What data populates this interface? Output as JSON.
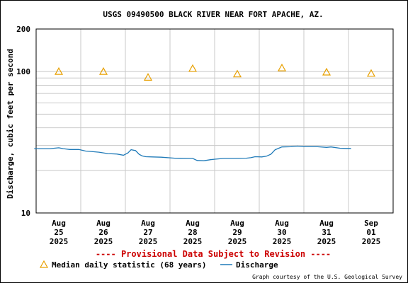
{
  "chart_data": {
    "type": "line",
    "title": "USGS 09490500 BLACK RIVER NEAR FORT APACHE, AZ.",
    "ylabel": "Discharge, cubic feet per second",
    "xlabel": "",
    "y_scale": "log",
    "ylim": [
      10,
      200
    ],
    "y_tick_labels": [
      "200",
      "100",
      "10"
    ],
    "x_tick_labels": [
      [
        "Aug",
        "25",
        "2025"
      ],
      [
        "Aug",
        "26",
        "2025"
      ],
      [
        "Aug",
        "27",
        "2025"
      ],
      [
        "Aug",
        "28",
        "2025"
      ],
      [
        "Aug",
        "29",
        "2025"
      ],
      [
        "Aug",
        "30",
        "2025"
      ],
      [
        "Aug",
        "31",
        "2025"
      ],
      [
        "Sep",
        "01",
        "2025"
      ]
    ],
    "grid": true,
    "series": [
      {
        "name": "Median daily statistic (68 years)",
        "marker": "triangle",
        "color": "#e8a000",
        "x": [
          "2025-08-25",
          "2025-08-26",
          "2025-08-27",
          "2025-08-28",
          "2025-08-29",
          "2025-08-30",
          "2025-08-31",
          "2025-09-01"
        ],
        "values": [
          100,
          100,
          91,
          105,
          96,
          106,
          99,
          97
        ]
      },
      {
        "name": "Discharge",
        "marker": "none",
        "color": "#1f7ab8",
        "x_days_from_aug25": [
          -0.55,
          -0.2,
          0.0,
          0.1,
          0.25,
          0.45,
          0.6,
          0.9,
          1.1,
          1.3,
          1.45,
          1.55,
          1.62,
          1.72,
          1.8,
          1.87,
          1.95,
          2.1,
          2.3,
          2.6,
          3.0,
          3.1,
          3.25,
          3.4,
          3.5,
          3.7,
          3.9,
          4.2,
          4.3,
          4.4,
          4.55,
          4.65,
          4.75,
          4.85,
          5.0,
          5.2,
          5.35,
          5.5,
          5.8,
          6.0,
          6.1,
          6.3,
          6.45,
          6.55
        ],
        "values": [
          28.5,
          28.5,
          28.9,
          28.5,
          28.1,
          28.1,
          27.4,
          26.9,
          26.3,
          26.1,
          25.6,
          26.6,
          28.0,
          27.6,
          26.0,
          25.3,
          25.0,
          24.9,
          24.8,
          24.4,
          24.3,
          23.5,
          23.4,
          23.8,
          24.0,
          24.3,
          24.3,
          24.4,
          24.6,
          25.0,
          24.9,
          25.2,
          26.0,
          28.0,
          29.3,
          29.4,
          29.7,
          29.4,
          29.4,
          29.1,
          29.3,
          28.7,
          28.6,
          28.6
        ]
      }
    ]
  },
  "notice": "---- Provisional Data Subject to Revision ----",
  "legend": {
    "median_label": "Median daily statistic (68 years)",
    "discharge_label": "Discharge"
  },
  "credit": "Graph courtesy of the U.S. Geological Survey",
  "colors": {
    "notice": "#cc0000",
    "median": "#e8a000",
    "discharge": "#1f7ab8",
    "grid": "#c8c8c8"
  }
}
